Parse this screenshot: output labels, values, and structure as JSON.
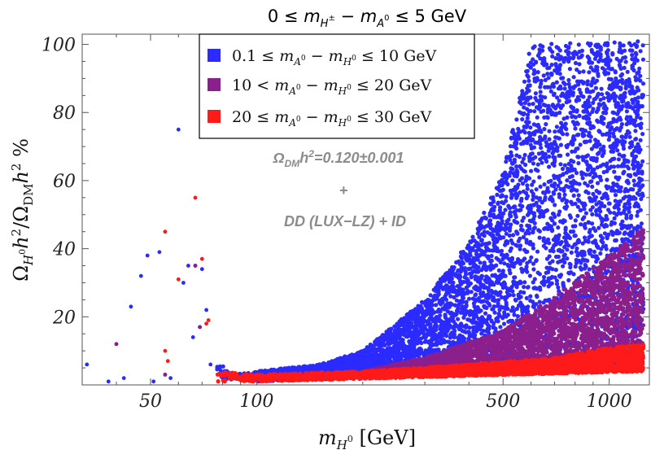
{
  "chart_data": {
    "type": "scatter",
    "title": "0 ≤ m_{H±} − m_{A0} ≤ 5 GeV",
    "xlabel": "m_{H0} [GeV]",
    "ylabel": "Ω_{H0} h² / Ω_DM h² %",
    "x_scale": "log",
    "xlim": [
      32,
      1300
    ],
    "ylim": [
      0,
      103
    ],
    "x_ticks": [
      50,
      100,
      500,
      1000
    ],
    "y_ticks": [
      20,
      40,
      60,
      80,
      100
    ],
    "grid": false,
    "legend_position": "top-center",
    "annotation": [
      "Ω_DM h² = 0.120±0.001",
      "+",
      "DD (LUX-LZ) + ID"
    ],
    "series": [
      {
        "name": "0.1 ≤ m_{A0} − m_{H0} ≤ 10 GeV",
        "color": "#2b2bff",
        "isolated_points": [
          [
            33,
            6
          ],
          [
            38,
            1
          ],
          [
            40,
            12
          ],
          [
            42,
            2
          ],
          [
            44,
            23
          ],
          [
            47,
            32
          ],
          [
            49,
            38
          ],
          [
            51,
            1
          ],
          [
            53,
            39
          ],
          [
            55,
            3
          ],
          [
            57,
            2
          ],
          [
            60,
            75
          ],
          [
            62,
            30
          ],
          [
            64,
            35
          ],
          [
            66,
            14
          ],
          [
            67,
            35
          ],
          [
            69,
            17
          ],
          [
            70,
            34
          ],
          [
            72,
            22
          ],
          [
            74,
            6
          ]
        ],
        "band": {
          "x_start": 76,
          "x_end": 1250,
          "upper_envelope": [
            [
              76,
              8
            ],
            [
              85,
              3
            ],
            [
              100,
              4
            ],
            [
              150,
              6
            ],
            [
              200,
              10
            ],
            [
              300,
              25
            ],
            [
              400,
              42
            ],
            [
              500,
              62
            ],
            [
              600,
              100
            ],
            [
              1250,
              101
            ]
          ],
          "lower_envelope": [
            [
              76,
              2
            ],
            [
              100,
              1
            ],
            [
              1250,
              5
            ]
          ]
        }
      },
      {
        "name": "10 < m_{A0} − m_{H0} ≤ 20 GeV",
        "color": "#8b1f8b",
        "isolated_points": [
          [
            40,
            12
          ],
          [
            55,
            3
          ],
          [
            67,
            35
          ],
          [
            69,
            17
          ]
        ],
        "band": {
          "x_start": 100,
          "x_end": 1250,
          "upper_envelope": [
            [
              100,
              2
            ],
            [
              200,
              4
            ],
            [
              300,
              8
            ],
            [
              500,
              16
            ],
            [
              700,
              26
            ],
            [
              1000,
              38
            ],
            [
              1250,
              46
            ]
          ],
          "lower_envelope": [
            [
              100,
              1
            ],
            [
              1250,
              5
            ]
          ]
        }
      },
      {
        "name": "20 ≤ m_{A0} − m_{H0} ≤ 30 GeV",
        "color": "#ff1a1a",
        "isolated_points": [
          [
            55,
            45
          ],
          [
            55,
            10
          ],
          [
            56,
            7
          ],
          [
            60,
            31
          ],
          [
            67,
            55
          ],
          [
            70,
            37
          ],
          [
            72,
            18
          ],
          [
            73,
            19
          ]
        ],
        "band": {
          "x_start": 77,
          "x_end": 1250,
          "upper_envelope": [
            [
              77,
              4
            ],
            [
              100,
              3
            ],
            [
              200,
              4
            ],
            [
              400,
              6
            ],
            [
              700,
              8
            ],
            [
              1000,
              11
            ],
            [
              1250,
              12
            ]
          ],
          "lower_envelope": [
            [
              77,
              1
            ],
            [
              100,
              1
            ],
            [
              1250,
              4
            ]
          ]
        }
      }
    ]
  }
}
